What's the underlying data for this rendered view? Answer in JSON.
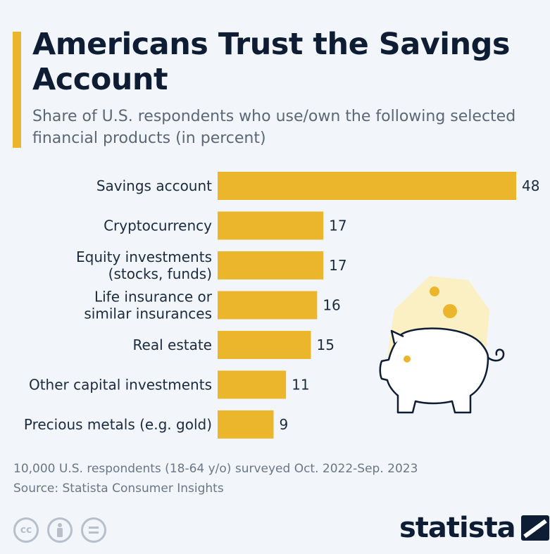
{
  "header": {
    "title": "Americans Trust the Savings Account",
    "subtitle": "Share of U.S. respondents who use/own the following selected financial products (in percent)"
  },
  "chart_data": {
    "type": "bar",
    "orientation": "horizontal",
    "categories": [
      [
        "Savings account"
      ],
      [
        "Cryptocurrency"
      ],
      [
        "Equity investments",
        "(stocks, funds)"
      ],
      [
        "Life insurance or",
        "similar insurances"
      ],
      [
        "Real estate"
      ],
      [
        "Other capital investments"
      ],
      [
        "Precious metals (e.g. gold)"
      ]
    ],
    "values": [
      48,
      17,
      17,
      16,
      15,
      11,
      9
    ],
    "bar_color": "#ecb62c",
    "grid": false,
    "legend": "none"
  },
  "footer": {
    "note": "10,000 U.S. respondents (18-64 y/o) surveyed Oct. 2022-Sep. 2023",
    "source": "Source: Statista Consumer Insights",
    "brand": "statista"
  },
  "icons": [
    "creative-commons-icon",
    "attribution-icon",
    "no-derivatives-icon",
    "piggy-bank-icon",
    "statista-logo-icon"
  ],
  "colors": {
    "accent": "#ecb62c",
    "background": "#f2f6fa",
    "title": "#0e1d33"
  }
}
